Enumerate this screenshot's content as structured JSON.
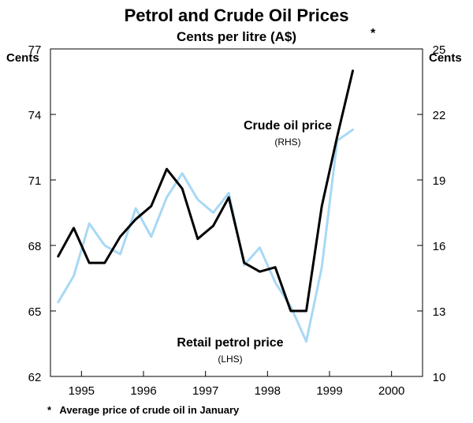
{
  "chart_data": {
    "type": "line",
    "title": "Petrol and Crude Oil Prices",
    "subtitle": "Cents per litre (A$)",
    "ylabel_left": "Cents",
    "ylabel_right": "Cents",
    "ylim_left": [
      62,
      77
    ],
    "ylim_right": [
      10,
      25
    ],
    "yticks_left": [
      62,
      65,
      68,
      71,
      74,
      77
    ],
    "yticks_right": [
      10,
      13,
      16,
      19,
      22,
      25
    ],
    "xlim": [
      1994.5,
      2000.5
    ],
    "xtick_labels": [
      "1995",
      "1996",
      "1997",
      "1998",
      "1999",
      "2000"
    ],
    "xtick_positions": [
      1995,
      1996,
      1997,
      1998,
      1999,
      2000
    ],
    "series": [
      {
        "name": "Retail petrol price",
        "note": "(LHS)",
        "axis": "left",
        "color": "#a8d8f5",
        "x": [
          1994.625,
          1994.875,
          1995.125,
          1995.375,
          1995.625,
          1995.875,
          1996.125,
          1996.375,
          1996.625,
          1996.875,
          1997.125,
          1997.375,
          1997.625,
          1997.875,
          1998.125,
          1998.375,
          1998.625,
          1998.875,
          1999.125,
          1999.375
        ],
        "values": [
          65.4,
          66.6,
          69.0,
          68.0,
          67.6,
          69.7,
          68.4,
          70.2,
          71.3,
          70.1,
          69.5,
          70.4,
          67.1,
          67.9,
          66.3,
          65.2,
          63.6,
          67.0,
          72.8,
          73.3
        ]
      },
      {
        "name": "Crude oil price",
        "note": "(RHS)",
        "axis": "right",
        "color": "#000000",
        "x": [
          1994.625,
          1994.875,
          1995.125,
          1995.375,
          1995.625,
          1995.875,
          1996.125,
          1996.375,
          1996.625,
          1996.875,
          1997.125,
          1997.375,
          1997.625,
          1997.875,
          1998.125,
          1998.375,
          1998.625,
          1998.875,
          1999.125,
          1999.375
        ],
        "values": [
          15.5,
          16.8,
          15.2,
          15.2,
          16.4,
          17.2,
          17.8,
          19.5,
          18.6,
          16.3,
          16.9,
          18.2,
          15.2,
          14.8,
          15.0,
          13.0,
          13.0,
          17.8,
          21.0,
          24.0
        ]
      }
    ],
    "annotations": [
      {
        "text": "Crude oil price",
        "sub": "(RHS)"
      },
      {
        "text": "Retail petrol price",
        "sub": "(LHS)"
      },
      {
        "text": "*",
        "x": 1999.625,
        "y_right": 25.9
      }
    ],
    "footnote": "*   Average price of crude oil in January"
  }
}
